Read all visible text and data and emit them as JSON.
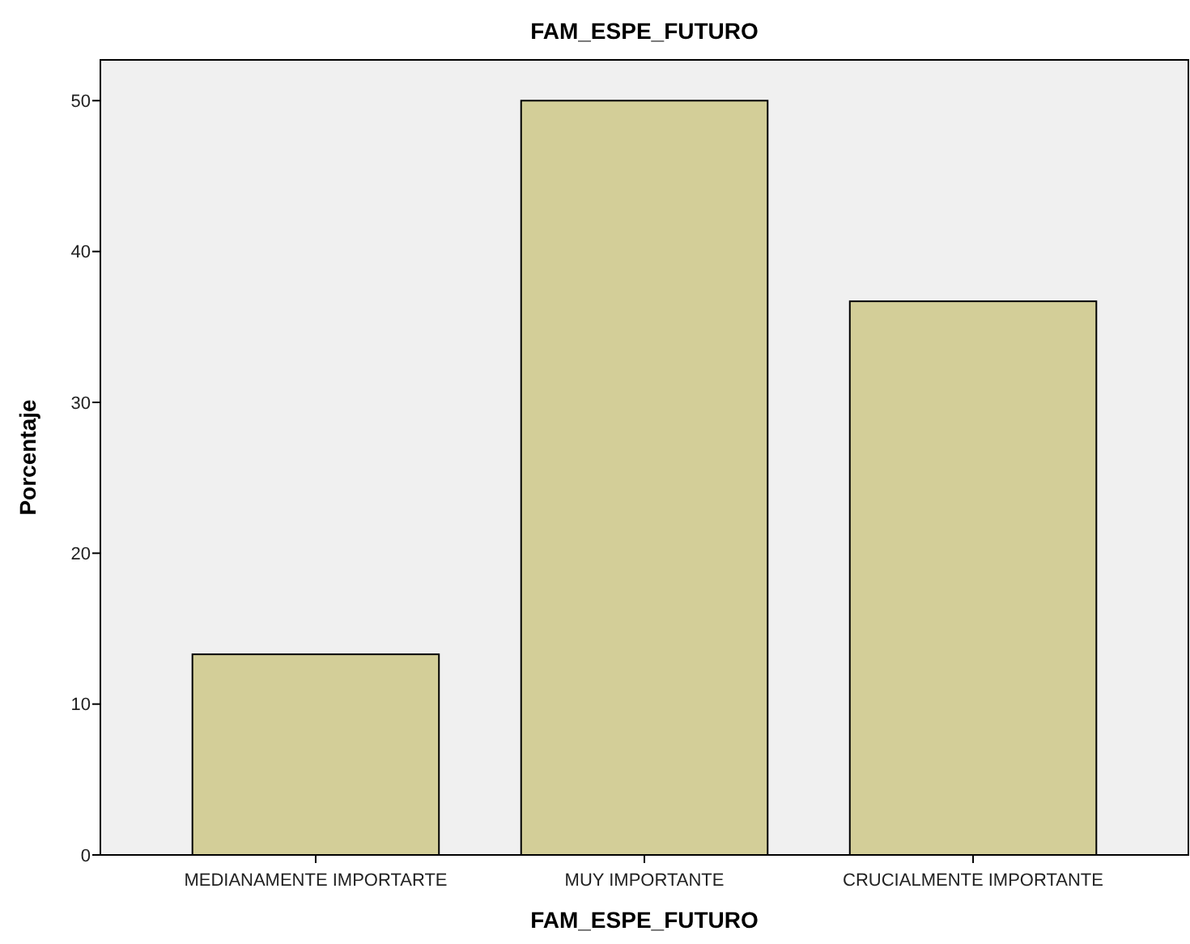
{
  "chart_data": {
    "type": "bar",
    "title": "FAM_ESPE_FUTURO",
    "xlabel": "FAM_ESPE_FUTURO",
    "ylabel": "Porcentaje",
    "categories": [
      "MEDIANAMENTE IMPORTARTE",
      "MUY IMPORTANTE",
      "CRUCIALMENTE IMPORTANTE"
    ],
    "values": [
      13.3,
      50,
      36.7
    ],
    "color": "#d3ce98",
    "ylim": [
      0,
      52.7
    ],
    "yticks": [
      0,
      10,
      20,
      30,
      40,
      50
    ],
    "grid": false
  }
}
